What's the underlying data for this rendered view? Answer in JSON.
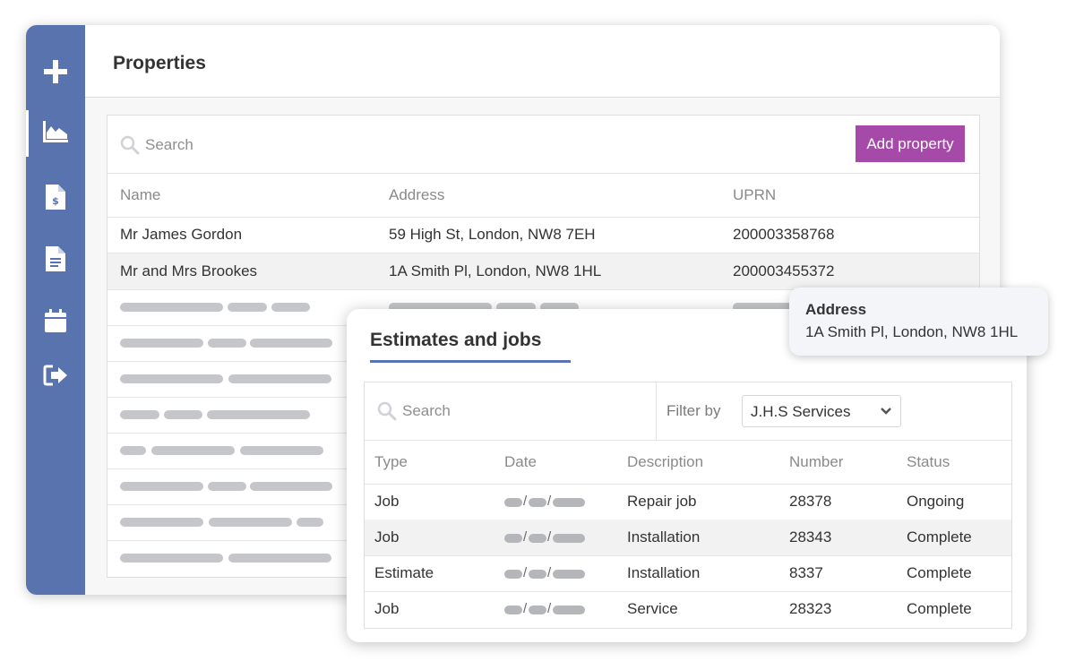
{
  "sidebar": {
    "items": [
      {
        "icon": "plus-icon"
      },
      {
        "icon": "chart-icon",
        "active": true
      },
      {
        "icon": "invoice-icon"
      },
      {
        "icon": "document-icon"
      },
      {
        "icon": "calendar-icon"
      },
      {
        "icon": "logout-icon"
      }
    ]
  },
  "header": {
    "title": "Properties"
  },
  "properties": {
    "search_placeholder": "Search",
    "add_label": "Add property",
    "columns": [
      "Name",
      "Address",
      "UPRN"
    ],
    "rows": [
      {
        "name": "Mr James Gordon",
        "address": "59 High St, London, NW8 7EH",
        "uprn": "200003358768"
      },
      {
        "name": "Mr and Mrs Brookes",
        "address": "1A Smith Pl, London, NW8 1HL",
        "uprn": "200003455372"
      }
    ]
  },
  "estimates": {
    "title": "Estimates and jobs",
    "search_placeholder": "Search",
    "filter_label": "Filter by",
    "filter_value": "J.H.S Services",
    "columns": [
      "Type",
      "Date",
      "Description",
      "Number",
      "Status"
    ],
    "rows": [
      {
        "type": "Job",
        "description": "Repair job",
        "number": "28378",
        "status": "Ongoing"
      },
      {
        "type": "Job",
        "description": "Installation",
        "number": "28343",
        "status": "Complete"
      },
      {
        "type": "Estimate",
        "description": "Installation",
        "number": "8337",
        "status": "Complete"
      },
      {
        "type": "Job",
        "description": "Service",
        "number": "28323",
        "status": "Complete"
      }
    ]
  },
  "tooltip": {
    "title": "Address",
    "value": "1A Smith Pl, London, NW8 1HL"
  },
  "colors": {
    "sidebar": "#5873ae",
    "accent_button": "#a64aa9",
    "placeholder_bar": "#c4c6c9"
  }
}
